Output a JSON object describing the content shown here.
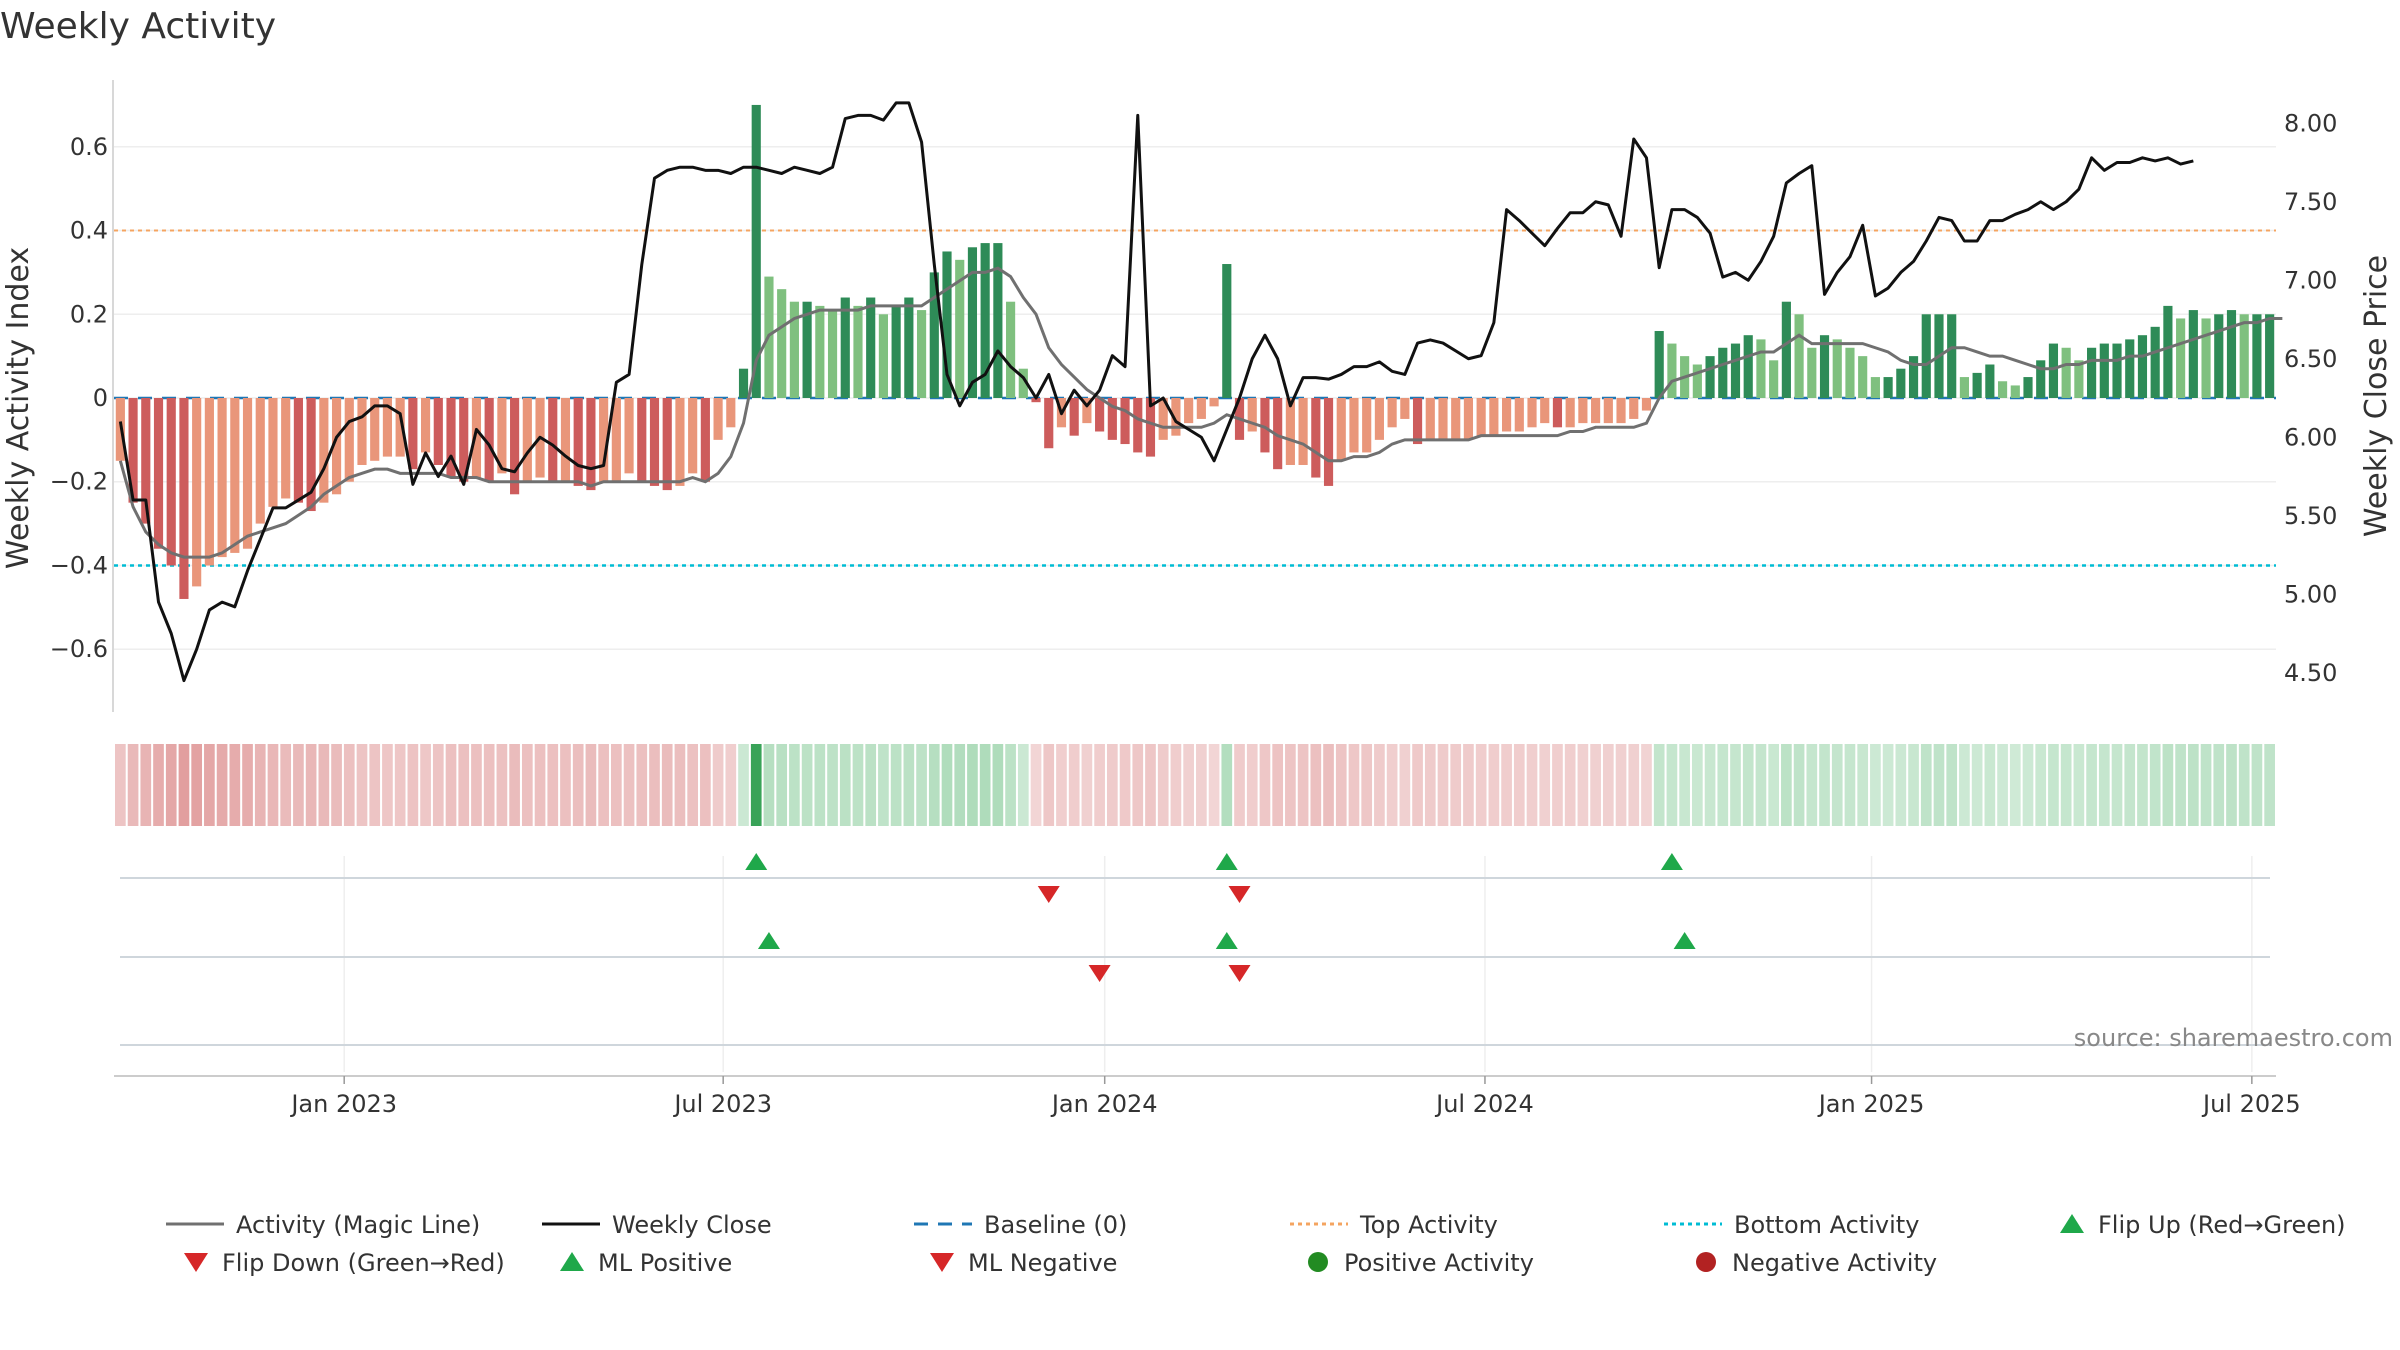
{
  "colors": {
    "pos_dark": "#2e8b57",
    "pos_light": "#7fc07f",
    "neg_dark": "#cd5c5c",
    "neg_light": "#e9967a",
    "close": "#111111",
    "magic": "#707070",
    "baseline": "#1f77b4",
    "top": "#f4a460",
    "bottom": "#00bcd4",
    "up_marker": "#1fa84a",
    "down_marker": "#d62728",
    "pos_dot": "#228b22",
    "neg_dot": "#b22222"
  },
  "chart_data": {
    "type": "bar+line",
    "title": "Weekly Activity",
    "ylabel_left": "Weekly Activity Index",
    "ylabel_right": "Weekly Close Price",
    "ylim_left": [
      -0.75,
      0.75
    ],
    "ylim_right": [
      4.25,
      8.25
    ],
    "left_ticks": [
      "0.6",
      "0.4",
      "0.2",
      "0",
      "−0.2",
      "−0.4",
      "−0.6"
    ],
    "left_tick_values": [
      0.6,
      0.4,
      0.2,
      0,
      -0.2,
      -0.4,
      -0.6
    ],
    "right_ticks": [
      "8.00",
      "7.50",
      "7.00",
      "6.50",
      "6.00",
      "5.50",
      "5.00",
      "4.50"
    ],
    "right_tick_values": [
      8.0,
      7.5,
      7.0,
      6.5,
      6.0,
      5.5,
      5.0,
      4.5
    ],
    "x_ticks": [
      "Jan 2023",
      "Jul 2023",
      "Jan 2024",
      "Jul 2024",
      "Jan 2025",
      "Jul 2025"
    ],
    "x_tick_weeks": [
      17.6,
      47.4,
      77.4,
      107.3,
      137.7,
      167.6
    ],
    "top_activity": 0.4,
    "bottom_activity": -0.4,
    "baseline": 0,
    "activity": [
      -0.15,
      -0.25,
      -0.3,
      -0.36,
      -0.4,
      -0.48,
      -0.45,
      -0.4,
      -0.38,
      -0.37,
      -0.36,
      -0.3,
      -0.26,
      -0.24,
      -0.25,
      -0.27,
      -0.25,
      -0.23,
      -0.2,
      -0.16,
      -0.15,
      -0.14,
      -0.14,
      -0.17,
      -0.13,
      -0.16,
      -0.19,
      -0.2,
      -0.19,
      -0.2,
      -0.18,
      -0.23,
      -0.2,
      -0.19,
      -0.2,
      -0.2,
      -0.21,
      -0.22,
      -0.2,
      -0.2,
      -0.18,
      -0.2,
      -0.21,
      -0.22,
      -0.21,
      -0.18,
      -0.2,
      -0.1,
      -0.07,
      0.07,
      0.7,
      0.29,
      0.26,
      0.23,
      0.23,
      0.22,
      0.21,
      0.24,
      0.22,
      0.24,
      0.2,
      0.22,
      0.24,
      0.21,
      0.3,
      0.35,
      0.33,
      0.36,
      0.37,
      0.37,
      0.23,
      0.07,
      -0.01,
      -0.12,
      -0.07,
      -0.09,
      -0.06,
      -0.08,
      -0.1,
      -0.11,
      -0.13,
      -0.14,
      -0.1,
      -0.09,
      -0.06,
      -0.05,
      -0.02,
      0.32,
      -0.1,
      -0.08,
      -0.13,
      -0.17,
      -0.16,
      -0.16,
      -0.19,
      -0.21,
      -0.15,
      -0.13,
      -0.13,
      -0.1,
      -0.07,
      -0.05,
      -0.11,
      -0.1,
      -0.1,
      -0.1,
      -0.1,
      -0.09,
      -0.09,
      -0.08,
      -0.08,
      -0.07,
      -0.06,
      -0.07,
      -0.07,
      -0.06,
      -0.06,
      -0.06,
      -0.06,
      -0.05,
      -0.03,
      0.16,
      0.13,
      0.1,
      0.08,
      0.1,
      0.12,
      0.13,
      0.15,
      0.14,
      0.09,
      0.23,
      0.2,
      0.12,
      0.15,
      0.14,
      0.12,
      0.1,
      0.05,
      0.05,
      0.07,
      0.1,
      0.2,
      0.2,
      0.2,
      0.05,
      0.06,
      0.08,
      0.04,
      0.03,
      0.05,
      0.09,
      0.13,
      0.12,
      0.09,
      0.12,
      0.13,
      0.13,
      0.14,
      0.15,
      0.17,
      0.22,
      0.19,
      0.21,
      0.19,
      0.2,
      0.21,
      0.2,
      0.2,
      0.2
    ],
    "magic_line": [
      -0.15,
      -0.26,
      -0.32,
      -0.35,
      -0.37,
      -0.38,
      -0.38,
      -0.38,
      -0.37,
      -0.35,
      -0.33,
      -0.32,
      -0.31,
      -0.3,
      -0.28,
      -0.26,
      -0.23,
      -0.21,
      -0.19,
      -0.18,
      -0.17,
      -0.17,
      -0.18,
      -0.18,
      -0.18,
      -0.18,
      -0.19,
      -0.19,
      -0.19,
      -0.2,
      -0.2,
      -0.2,
      -0.2,
      -0.2,
      -0.2,
      -0.2,
      -0.2,
      -0.21,
      -0.2,
      -0.2,
      -0.2,
      -0.2,
      -0.2,
      -0.2,
      -0.2,
      -0.19,
      -0.2,
      -0.18,
      -0.14,
      -0.06,
      0.09,
      0.15,
      0.17,
      0.19,
      0.2,
      0.21,
      0.21,
      0.21,
      0.21,
      0.22,
      0.22,
      0.22,
      0.22,
      0.22,
      0.24,
      0.26,
      0.28,
      0.3,
      0.3,
      0.31,
      0.29,
      0.24,
      0.2,
      0.12,
      0.08,
      0.05,
      0.02,
      0.0,
      -0.02,
      -0.03,
      -0.05,
      -0.06,
      -0.07,
      -0.07,
      -0.07,
      -0.07,
      -0.06,
      -0.04,
      -0.05,
      -0.06,
      -0.07,
      -0.09,
      -0.1,
      -0.11,
      -0.13,
      -0.15,
      -0.15,
      -0.14,
      -0.14,
      -0.13,
      -0.11,
      -0.1,
      -0.1,
      -0.1,
      -0.1,
      -0.1,
      -0.1,
      -0.09,
      -0.09,
      -0.09,
      -0.09,
      -0.09,
      -0.09,
      -0.09,
      -0.08,
      -0.08,
      -0.07,
      -0.07,
      -0.07,
      -0.07,
      -0.06,
      0.0,
      0.04,
      0.05,
      0.06,
      0.07,
      0.08,
      0.09,
      0.1,
      0.11,
      0.11,
      0.13,
      0.15,
      0.13,
      0.13,
      0.13,
      0.13,
      0.13,
      0.12,
      0.11,
      0.09,
      0.08,
      0.08,
      0.1,
      0.12,
      0.12,
      0.11,
      0.1,
      0.1,
      0.09,
      0.08,
      0.07,
      0.07,
      0.08,
      0.08,
      0.09,
      0.09,
      0.09,
      0.1,
      0.1,
      0.11,
      0.12,
      0.13,
      0.14,
      0.15,
      0.16,
      0.17,
      0.18,
      0.18,
      0.19,
      0.19
    ],
    "weekly_close": [
      6.1,
      5.6,
      5.6,
      4.95,
      4.75,
      4.45,
      4.65,
      4.9,
      4.95,
      4.92,
      5.15,
      5.35,
      5.55,
      5.55,
      5.6,
      5.65,
      5.8,
      6.0,
      6.1,
      6.13,
      6.2,
      6.2,
      6.15,
      5.7,
      5.9,
      5.75,
      5.88,
      5.7,
      6.05,
      5.95,
      5.8,
      5.78,
      5.9,
      6.0,
      5.95,
      5.88,
      5.82,
      5.8,
      5.82,
      6.35,
      6.4,
      7.1,
      7.65,
      7.7,
      7.72,
      7.72,
      7.7,
      7.7,
      7.68,
      7.72,
      7.72,
      7.7,
      7.68,
      7.72,
      7.7,
      7.68,
      7.72,
      8.03,
      8.05,
      8.05,
      8.02,
      8.13,
      8.13,
      7.88,
      7.1,
      6.4,
      6.2,
      6.35,
      6.4,
      6.55,
      6.45,
      6.38,
      6.25,
      6.4,
      6.15,
      6.3,
      6.2,
      6.3,
      6.52,
      6.45,
      8.05,
      6.2,
      6.25,
      6.1,
      6.05,
      6.0,
      5.85,
      6.05,
      6.25,
      6.5,
      6.65,
      6.5,
      6.2,
      6.38,
      6.38,
      6.37,
      6.4,
      6.45,
      6.45,
      6.48,
      6.42,
      6.4,
      6.6,
      6.62,
      6.6,
      6.55,
      6.5,
      6.52,
      6.73,
      7.45,
      7.38,
      7.3,
      7.22,
      7.33,
      7.43,
      7.43,
      7.5,
      7.48,
      7.28,
      7.9,
      7.78,
      7.08,
      7.45,
      7.45,
      7.4,
      7.3,
      7.02,
      7.05,
      7.0,
      7.12,
      7.28,
      7.62,
      7.68,
      7.73,
      6.91,
      7.05,
      7.15,
      7.35,
      6.9,
      6.95,
      7.05,
      7.12,
      7.25,
      7.4,
      7.38,
      7.25,
      7.25,
      7.38,
      7.38,
      7.42,
      7.45,
      7.5,
      7.45,
      7.5,
      7.58,
      7.78,
      7.7,
      7.75,
      7.75,
      7.78,
      7.76,
      7.78,
      7.74,
      7.76
    ],
    "signal_rows": [
      {
        "up": [
          50,
          87,
          122
        ],
        "down": [
          73,
          88
        ]
      },
      {
        "up": [
          51,
          87,
          123
        ],
        "down": [
          77,
          88
        ]
      }
    ],
    "source": "source: sharemaestro.com",
    "legend": [
      {
        "label": "Activity (Magic Line)",
        "kind": "line",
        "color": "#707070",
        "dash": ""
      },
      {
        "label": "Weekly Close",
        "kind": "line",
        "color": "#111111",
        "dash": ""
      },
      {
        "label": "Baseline (0)",
        "kind": "line",
        "color": "#1f77b4",
        "dash": "14 10"
      },
      {
        "label": "Top Activity",
        "kind": "line",
        "color": "#f4a460",
        "dash": "4 4"
      },
      {
        "label": "Bottom Activity",
        "kind": "line",
        "color": "#00bcd4",
        "dash": "4 4"
      },
      {
        "label": "Flip Up (Red→Green)",
        "kind": "up",
        "color": "#1fa84a",
        "dash": ""
      },
      {
        "label": "Flip Down (Green→Red)",
        "kind": "down",
        "color": "#d62728",
        "dash": ""
      },
      {
        "label": "ML Positive",
        "kind": "up",
        "color": "#1fa84a",
        "dash": ""
      },
      {
        "label": "ML Negative",
        "kind": "down",
        "color": "#d62728",
        "dash": ""
      },
      {
        "label": "Positive Activity",
        "kind": "dot",
        "color": "#228b22",
        "dash": ""
      },
      {
        "label": "Negative Activity",
        "kind": "dot",
        "color": "#b22222",
        "dash": ""
      }
    ]
  }
}
